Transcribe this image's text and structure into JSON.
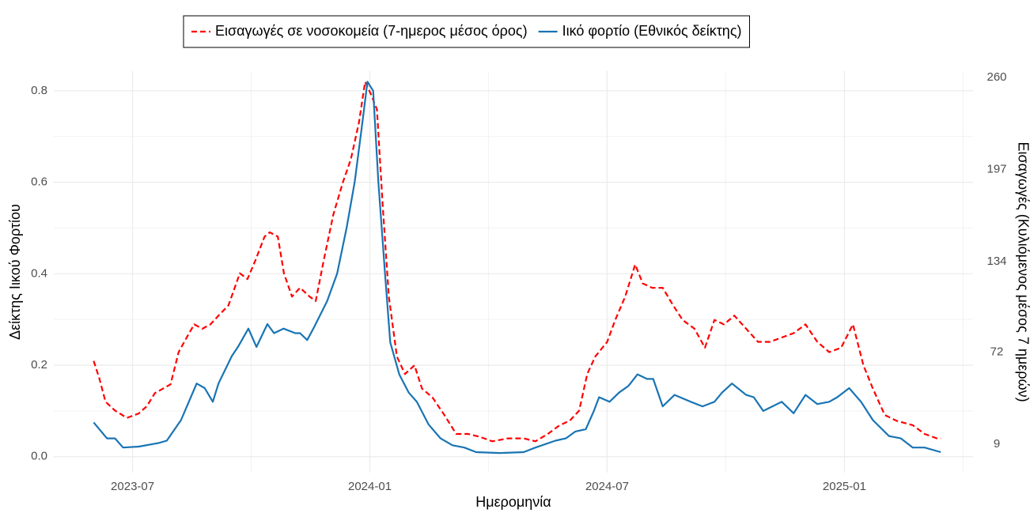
{
  "chart_data": {
    "type": "line",
    "x_label": "Ημερομηνία",
    "y_label": "Δείκτης Ιικού Φορτίου",
    "y2_label": "Εισαγωγές (Κυλιόμενος μέσος 7 ημερών)",
    "xlim": [
      2023.334,
      2025.271
    ],
    "xticks": [
      {
        "value": 2023.5,
        "label": "2023-07"
      },
      {
        "value": 2024.0,
        "label": "2024-01"
      },
      {
        "value": 2024.5,
        "label": "2024-07"
      },
      {
        "value": 2025.0,
        "label": "2025-01"
      }
    ],
    "ylim": [
      -0.035,
      0.843
    ],
    "yticks": [
      {
        "value": 0,
        "label": "0.0"
      },
      0.2,
      0.4,
      0.6,
      0.8
    ],
    "y2lim": [
      -10.5,
      264.3
    ],
    "y2ticks": [
      9,
      72,
      134,
      197,
      260
    ],
    "grid": true,
    "legend": "top",
    "series": [
      {
        "name": "Εισαγωγές σε νοσοκομεία (7-ημερος μέσος όρος)",
        "color": "#ff0000",
        "dash": true,
        "axis": "y2",
        "x": [
          2023.418,
          2023.43,
          2023.443,
          2023.463,
          2023.488,
          2023.513,
          2023.53,
          2023.547,
          2023.564,
          2023.58,
          2023.597,
          2023.619,
          2023.63,
          2023.647,
          2023.664,
          2023.681,
          2023.702,
          2023.726,
          2023.742,
          2023.759,
          2023.778,
          2023.789,
          2023.806,
          2023.819,
          2023.836,
          2023.853,
          2023.873,
          2023.886,
          2023.903,
          2023.923,
          2023.943,
          2023.96,
          2023.977,
          2023.99,
          2024.003,
          2024.015,
          2024.027,
          2024.04,
          2024.057,
          2024.074,
          2024.094,
          2024.11,
          2024.132,
          2024.157,
          2024.182,
          2024.207,
          2024.232,
          2024.258,
          2024.291,
          2024.324,
          2024.349,
          2024.375,
          2024.4,
          2024.421,
          2024.441,
          2024.458,
          2024.475,
          2024.5,
          2024.517,
          2024.538,
          2024.559,
          2024.575,
          2024.595,
          2024.617,
          2024.639,
          2024.659,
          2024.684,
          2024.706,
          2024.726,
          2024.746,
          2024.768,
          2024.793,
          2024.818,
          2024.843,
          2024.868,
          2024.893,
          2024.918,
          2024.943,
          2024.968,
          2024.993,
          2025.018,
          2025.04,
          2025.06,
          2025.085,
          2025.11,
          2025.144,
          2025.169,
          2025.195,
          2025.203
        ],
        "values": [
          66,
          54,
          38,
          32,
          27,
          30,
          35,
          44,
          47,
          50,
          72,
          85,
          91,
          88,
          91,
          97,
          104,
          126,
          122,
          135,
          151,
          154,
          151,
          126,
          110,
          116,
          110,
          107,
          135,
          166,
          188,
          204,
          229,
          257,
          248,
          238,
          173,
          110,
          69,
          57,
          63,
          47,
          41,
          29,
          16,
          16,
          14,
          11,
          13,
          13,
          11,
          16,
          22,
          25,
          32,
          57,
          69,
          79,
          94,
          110,
          132,
          119,
          116,
          116,
          104,
          94,
          88,
          75,
          94,
          91,
          97,
          88,
          79,
          79,
          82,
          85,
          91,
          79,
          72,
          75,
          91,
          63,
          47,
          29,
          25,
          22,
          16,
          13,
          13
        ]
      },
      {
        "name": "Ιικό φορτίο (Εθνικός δείκτης)",
        "color": "#1874b4",
        "dash": false,
        "axis": "y",
        "x": [
          2023.418,
          2023.446,
          2023.463,
          2023.48,
          2023.513,
          2023.555,
          2023.572,
          2023.602,
          2023.635,
          2023.652,
          2023.669,
          2023.681,
          2023.709,
          2023.722,
          2023.744,
          2023.761,
          2023.784,
          2023.798,
          2023.818,
          2023.843,
          2023.853,
          2023.868,
          2023.881,
          2023.91,
          2023.931,
          2023.951,
          2023.968,
          2023.983,
          2023.995,
          2024.007,
          2024.018,
          2024.032,
          2024.043,
          2024.062,
          2024.082,
          2024.099,
          2024.124,
          2024.149,
          2024.174,
          2024.199,
          2024.224,
          2024.274,
          2024.324,
          2024.349,
          2024.391,
          2024.413,
          2024.433,
          2024.455,
          2024.472,
          2024.483,
          2024.505,
          2024.525,
          2024.545,
          2024.564,
          2024.584,
          2024.597,
          2024.617,
          2024.642,
          2024.676,
          2024.701,
          2024.726,
          2024.742,
          2024.763,
          2024.793,
          2024.809,
          2024.829,
          2024.868,
          2024.893,
          2024.918,
          2024.943,
          2024.968,
          2024.985,
          2025.01,
          2025.035,
          2025.06,
          2025.094,
          2025.119,
          2025.144,
          2025.169,
          2025.203
        ],
        "values": [
          0.075,
          0.04,
          0.04,
          0.02,
          0.022,
          0.03,
          0.035,
          0.08,
          0.16,
          0.15,
          0.12,
          0.16,
          0.22,
          0.24,
          0.28,
          0.24,
          0.29,
          0.27,
          0.28,
          0.27,
          0.27,
          0.255,
          0.28,
          0.34,
          0.4,
          0.5,
          0.6,
          0.72,
          0.82,
          0.8,
          0.6,
          0.4,
          0.25,
          0.18,
          0.14,
          0.12,
          0.07,
          0.04,
          0.025,
          0.02,
          0.01,
          0.008,
          0.01,
          0.02,
          0.035,
          0.04,
          0.055,
          0.06,
          0.1,
          0.13,
          0.12,
          0.14,
          0.155,
          0.18,
          0.17,
          0.17,
          0.11,
          0.135,
          0.12,
          0.11,
          0.12,
          0.14,
          0.16,
          0.135,
          0.13,
          0.1,
          0.12,
          0.095,
          0.135,
          0.115,
          0.12,
          0.13,
          0.15,
          0.12,
          0.08,
          0.045,
          0.04,
          0.02,
          0.02,
          0.01
        ]
      }
    ]
  }
}
